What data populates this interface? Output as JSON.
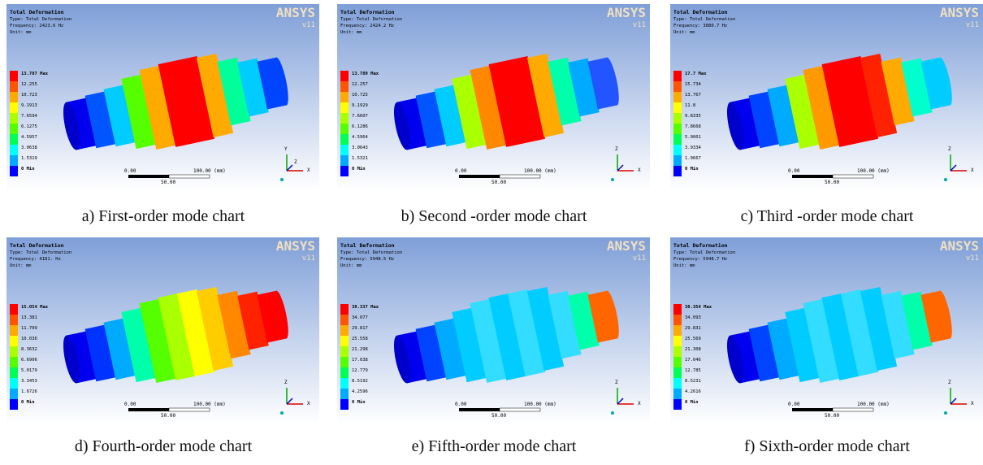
{
  "panels": [
    {
      "header": {
        "title": "Total Deformation",
        "type": "Type: Total Deformation",
        "frequency": "Frequency: 2423.6 Hz",
        "unit": "Unit: mm"
      },
      "logo": {
        "name": "ANSYS",
        "version": "v11"
      },
      "legend": [
        "13.787 Max",
        "12.255",
        "10.723",
        "9.1913",
        "7.6594",
        "6.1275",
        "4.5957",
        "3.0638",
        "1.5319",
        "0 Min"
      ],
      "scale": {
        "start": "0.00",
        "end": "100.00 (mm)",
        "mid": "50.00"
      },
      "triad": [
        "Y",
        "Z",
        "X"
      ],
      "caption": "a) First-order mode chart"
    },
    {
      "header": {
        "title": "Total Deformation",
        "type": "Type: Total Deformation",
        "frequency": "Frequency: 2424.2 Hz",
        "unit": "Unit: mm"
      },
      "logo": {
        "name": "ANSYS",
        "version": "v11"
      },
      "legend": [
        "13.789 Max",
        "12.257",
        "10.725",
        "9.1929",
        "7.6607",
        "6.1286",
        "4.5964",
        "3.0643",
        "1.5321",
        "0 Min"
      ],
      "scale": {
        "start": "0.00",
        "end": "100.00 (mm)",
        "mid": "50.00"
      },
      "triad": [
        "Z",
        "X"
      ],
      "caption": "b) Second -order mode chart"
    },
    {
      "header": {
        "title": "Total Deformation",
        "type": "Type: Total Deformation",
        "frequency": "Frequency: 3880.7 Hz",
        "unit": "Unit: mm"
      },
      "logo": {
        "name": "ANSYS",
        "version": "v11"
      },
      "legend": [
        "17.7 Max",
        "15.734",
        "13.767",
        "11.8",
        "9.8335",
        "7.8668",
        "5.9001",
        "3.9334",
        "1.9667",
        "0 Min"
      ],
      "scale": {
        "start": "0.00",
        "end": "100.00 (mm)",
        "mid": "50.00"
      },
      "triad": [
        "Z",
        "X"
      ],
      "caption": "c) Third -order mode chart"
    },
    {
      "header": {
        "title": "Total Deformation",
        "type": "Type: Total Deformation",
        "frequency": "Frequency: 4181. Hz",
        "unit": "Unit: mm"
      },
      "logo": {
        "name": "ANSYS",
        "version": "v11"
      },
      "legend": [
        "15.054 Max",
        "13.381",
        "11.709",
        "10.036",
        "8.3632",
        "6.6906",
        "5.0179",
        "3.3453",
        "1.6726",
        "0 Min"
      ],
      "scale": {
        "start": "0.00",
        "end": "100.00 (mm)",
        "mid": "50.00"
      },
      "triad": [
        "Z",
        "X"
      ],
      "caption": "d) Fourth-order mode chart"
    },
    {
      "header": {
        "title": "Total Deformation",
        "type": "Type: Total Deformation",
        "frequency": "Frequency: 5948.5 Hz",
        "unit": "Unit: mm"
      },
      "logo": {
        "name": "ANSYS",
        "version": "v11"
      },
      "legend": [
        "38.337 Max",
        "34.077",
        "29.817",
        "25.558",
        "21.298",
        "17.038",
        "12.779",
        "8.5192",
        "4.2596",
        "0 Min"
      ],
      "scale": {
        "start": "0.00",
        "end": "100.00 (mm)",
        "mid": "50.00"
      },
      "triad": [
        "Z",
        "X"
      ],
      "caption": "e) Fifth-order mode chart"
    },
    {
      "header": {
        "title": "Total Deformation",
        "type": "Type: Total Deformation",
        "frequency": "Frequency: 5948.7 Hz",
        "unit": "Unit: mm"
      },
      "logo": {
        "name": "ANSYS",
        "version": "v11"
      },
      "legend": [
        "38.354 Max",
        "34.093",
        "29.831",
        "25.569",
        "21.308",
        "17.046",
        "12.785",
        "8.5231",
        "4.2616",
        "0 Min"
      ],
      "scale": {
        "start": "0.00",
        "end": "100.00 (mm)",
        "mid": "50.00"
      },
      "triad": [
        "Z",
        "X"
      ],
      "caption": "f) Sixth-order mode chart"
    }
  ]
}
